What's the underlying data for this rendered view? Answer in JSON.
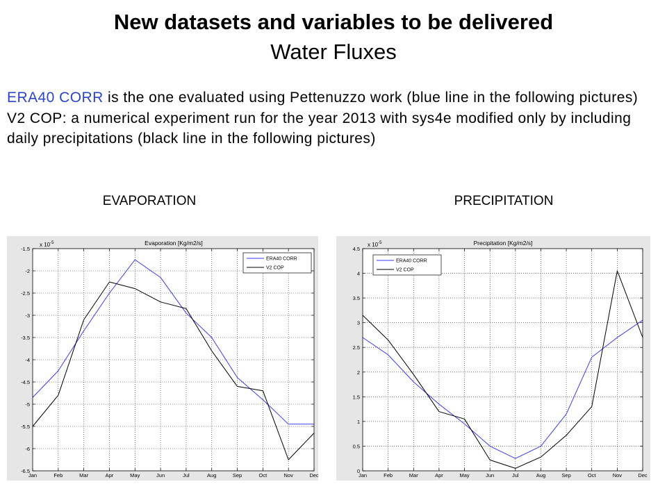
{
  "slide": {
    "title": "New datasets and variables to be delivered",
    "subtitle": "Water Fluxes",
    "body": {
      "line1_highlight": "ERA40 CORR",
      "line1_rest": " is the one evaluated using Pettenuzzo work (blue line in the following pictures)",
      "line2": "V2 COP: a numerical experiment run for the year 2013 with sys4e modified only by including",
      "line3": "daily precipitations (black line in the following pictures)"
    },
    "section_labels": {
      "left": "EVAPORATION",
      "right": "PRECIPITATION"
    }
  },
  "colors": {
    "text": "#000000",
    "highlight": "#2b45c8",
    "figure_background": "#e6e6e6"
  },
  "chart_data": [
    {
      "type": "line",
      "title": "Evaporation [Kg/m2/s]",
      "multiplier": "x 10",
      "multiplier_exp": "-5",
      "categories": [
        "Jan",
        "Feb",
        "Mar",
        "Apr",
        "May",
        "Jun",
        "Jul",
        "Aug",
        "Sep",
        "Oct",
        "Nov",
        "Dec"
      ],
      "ylim": [
        -6.5,
        -1.5
      ],
      "yticks": [
        -1.5,
        -2,
        -2.5,
        -3,
        -3.5,
        -4,
        -4.5,
        -5,
        -5.5,
        -6,
        -6.5
      ],
      "grid": true,
      "legend": "top-right",
      "series": [
        {
          "name": "ERA40 CORR",
          "color": "#3a3aff",
          "values": [
            -4.85,
            -4.25,
            -3.35,
            -2.5,
            -1.75,
            -2.15,
            -2.95,
            -3.5,
            -4.4,
            -4.9,
            -5.45,
            -5.45
          ]
        },
        {
          "name": "V2 COP",
          "color": "#000000",
          "values": [
            -5.5,
            -4.8,
            -3.1,
            -2.25,
            -2.4,
            -2.7,
            -2.85,
            -3.8,
            -4.6,
            -4.7,
            -6.25,
            -5.65
          ]
        }
      ]
    },
    {
      "type": "line",
      "title": "Precipitation [Kg/m2/s]",
      "multiplier": "x 10",
      "multiplier_exp": "-5",
      "categories": [
        "Jan",
        "Feb",
        "Mar",
        "Apr",
        "May",
        "Jun",
        "Jul",
        "Aug",
        "Sep",
        "Oct",
        "Nov",
        "Dec"
      ],
      "ylim": [
        0,
        4.5
      ],
      "yticks": [
        0,
        0.5,
        1,
        1.5,
        2,
        2.5,
        3,
        3.5,
        4,
        4.5
      ],
      "grid": true,
      "legend": "top-left",
      "series": [
        {
          "name": "ERA40 CORR",
          "color": "#3a3aff",
          "values": [
            2.7,
            2.35,
            1.8,
            1.35,
            0.95,
            0.5,
            0.25,
            0.5,
            1.15,
            2.3,
            2.7,
            3.05
          ]
        },
        {
          "name": "V2 COP",
          "color": "#000000",
          "values": [
            3.15,
            2.65,
            1.95,
            1.2,
            1.05,
            0.22,
            0.05,
            0.28,
            0.72,
            1.3,
            4.05,
            2.7
          ]
        }
      ]
    }
  ]
}
